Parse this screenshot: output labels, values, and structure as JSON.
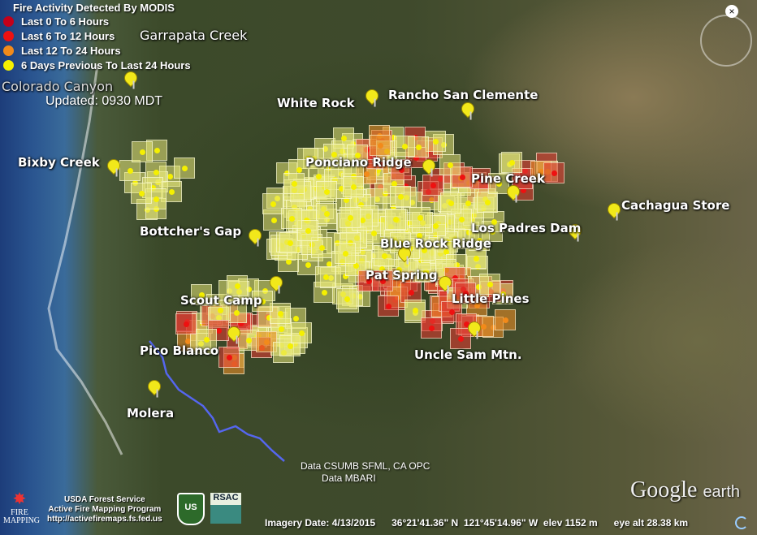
{
  "legend": {
    "title": "Fire Activity Detected By MODIS",
    "items": [
      {
        "label": "Last 0 To 6 Hours",
        "color": "#c4001a"
      },
      {
        "label": "Last 6 To 12 Hours",
        "color": "#ee1111"
      },
      {
        "label": "Last 12 To 24 Hours",
        "color": "#f28a1a"
      },
      {
        "label": "6 Days Previous To Last 24 Hours",
        "color": "#f5f000"
      }
    ]
  },
  "updated": "Updated: 0930 MDT",
  "places": [
    "Garrapata Creek",
    "Colorado Canyon",
    "White Rock",
    "Rancho San Clemente",
    "Bixby Creek",
    "Ponciano Ridge",
    "Pine Creek",
    "Cachagua Store",
    "Bottcher's Gap",
    "Los Padres Dam",
    "Blue Rock Ridge",
    "Pat Spring",
    "Scout Camp",
    "Little Pines",
    "Pico Blanco",
    "Uncle Sam Mtn.",
    "Molera"
  ],
  "attribution": [
    "Data CSUMB SFML, CA OPC",
    "Data MBARI"
  ],
  "agency": {
    "name": "USDA Forest Service",
    "program": "Active Fire Mapping Program",
    "url": "http://activefiremaps.fs.fed.us",
    "logo_text": "FIRE MAPPING",
    "usfs_logo": "US",
    "rsac_logo": "RSAC"
  },
  "status": {
    "imagery_date": "Imagery Date: 4/13/2015",
    "lat": "36°21'41.36\" N",
    "lon": "121°45'14.96\" W",
    "elev": "elev  1152 m",
    "eye_alt": "eye alt  28.38 km"
  },
  "brand": {
    "google": "Google",
    "earth": "earth"
  },
  "close": "×"
}
